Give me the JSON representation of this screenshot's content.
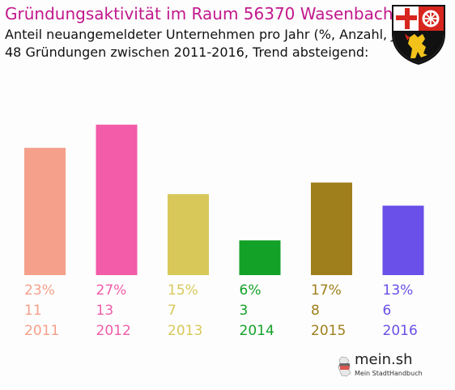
{
  "title": "Gründungsaktivität im Raum 56370 Wasenbach",
  "subtitle_line1": "Anteil neuangemeldeter Unternehmen pro Jahr (%, Anzahl, Jahr)",
  "subtitle_line2": "48 Gründungen zwischen 2011-2016, Trend absteigend:",
  "logo": {
    "name": "mein.sh",
    "tagline": "Mein StadtHandbuch"
  },
  "chart_data": {
    "type": "bar",
    "categories": [
      "2011",
      "2012",
      "2013",
      "2014",
      "2015",
      "2016"
    ],
    "percent_labels": [
      "23%",
      "27%",
      "15%",
      "6%",
      "17%",
      "13%"
    ],
    "values": [
      11,
      13,
      7,
      3,
      8,
      6
    ],
    "colors": [
      "#f4a08a",
      "#f25ca8",
      "#d8c85a",
      "#14a128",
      "#9f7f1c",
      "#6a4fe8"
    ],
    "grid": false,
    "legend": "none"
  }
}
